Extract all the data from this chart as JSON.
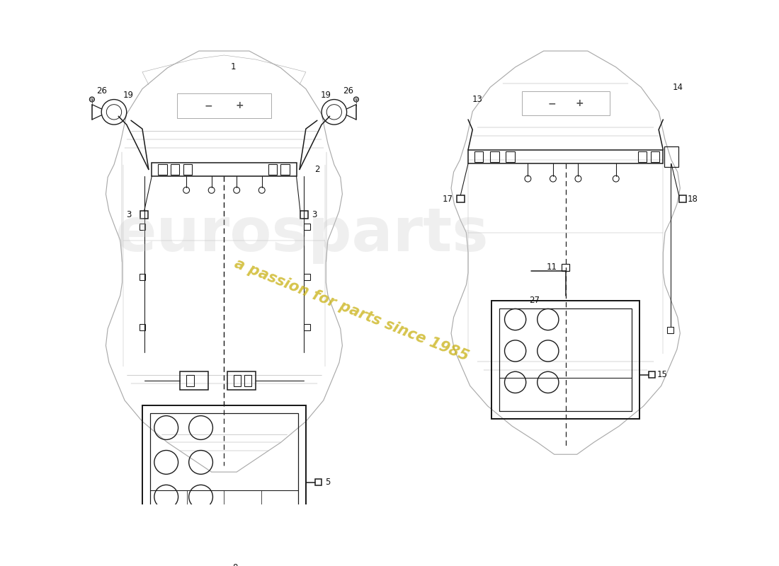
{
  "background_color": "#ffffff",
  "car_line_color": "#aaaaaa",
  "wiring_color": "#1a1a1a",
  "label_color": "#111111",
  "lw_car": 0.7,
  "lw_wire": 1.1,
  "watermark_text": "a passion for parts since 1985"
}
